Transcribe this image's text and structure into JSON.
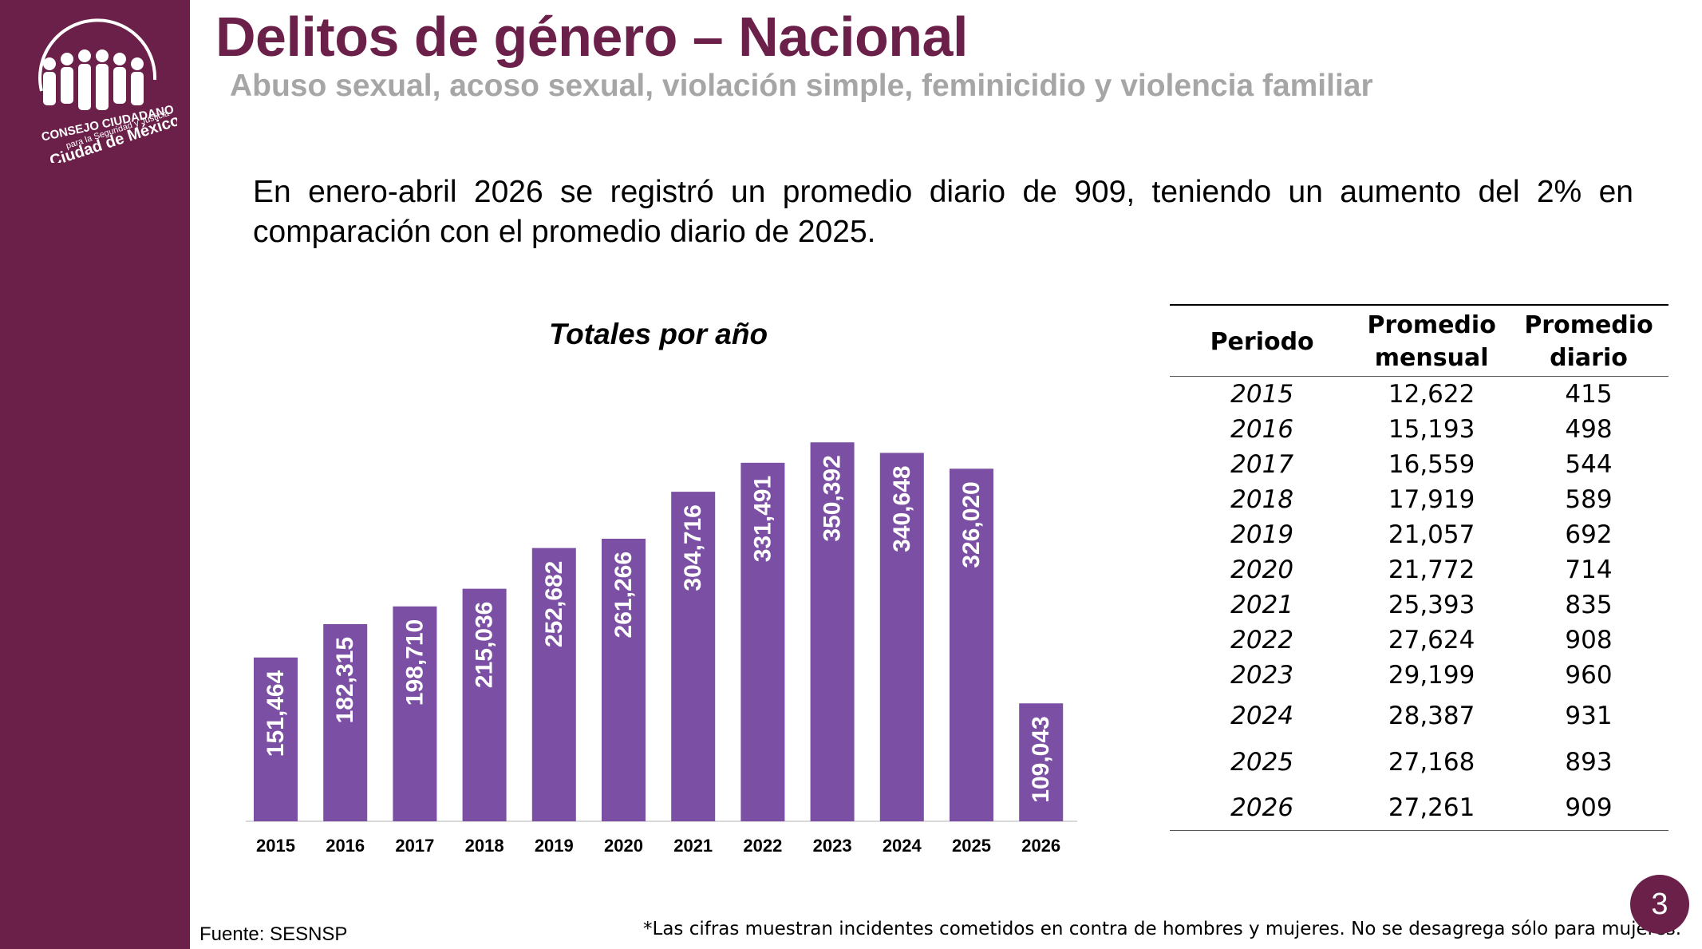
{
  "logo": {
    "line1": "CONSEJO CIUDADANO",
    "line2": "para la Seguridad y Justicia",
    "line3": "Ciudad de México"
  },
  "header": {
    "title": "Delitos de género – Nacional",
    "subtitle": "Abuso sexual, acoso sexual, violación simple, feminicidio y violencia familiar"
  },
  "intro": "En enero-abril 2026 se registró un promedio diario de 909, teniendo un aumento del 2% en comparación con el promedio diario de 2025.",
  "colors": {
    "brand": "#6b2049",
    "bar": "#7b4fa3",
    "subtitle": "#a6a6a6"
  },
  "chart_data": {
    "type": "bar",
    "title": "Totales por año",
    "categories": [
      "2015",
      "2016",
      "2017",
      "2018",
      "2019",
      "2020",
      "2021",
      "2022",
      "2023",
      "2024",
      "2025",
      "2026"
    ],
    "values": [
      151464,
      182315,
      198710,
      215036,
      252682,
      261266,
      304716,
      331491,
      350392,
      340648,
      326020,
      109043
    ],
    "value_labels": [
      "151,464",
      "182,315",
      "198,710",
      "215,036",
      "252,682",
      "261,266",
      "304,716",
      "331,491",
      "350,392",
      "340,648",
      "326,020",
      "109,043"
    ],
    "ylim": [
      0,
      400000
    ],
    "grid": false,
    "legend": "none"
  },
  "table": {
    "headers": [
      "Periodo",
      "Promedio mensual",
      "Promedio diario"
    ],
    "rows": [
      [
        "2015",
        "12,622",
        "415"
      ],
      [
        "2016",
        "15,193",
        "498"
      ],
      [
        "2017",
        "16,559",
        "544"
      ],
      [
        "2018",
        "17,919",
        "589"
      ],
      [
        "2019",
        "21,057",
        "692"
      ],
      [
        "2020",
        "21,772",
        "714"
      ],
      [
        "2021",
        "25,393",
        "835"
      ],
      [
        "2022",
        "27,624",
        "908"
      ],
      [
        "2023",
        "29,199",
        "960"
      ],
      [
        "2024",
        "28,387",
        "931"
      ],
      [
        "2025",
        "27,168",
        "893"
      ],
      [
        "2026",
        "27,261",
        "909"
      ]
    ]
  },
  "footer": {
    "source": "Fuente: SESNSP",
    "note": "*Las cifras muestran incidentes cometidos en contra de hombres y mujeres. No se desagrega sólo para mujeres.",
    "page": "3"
  }
}
